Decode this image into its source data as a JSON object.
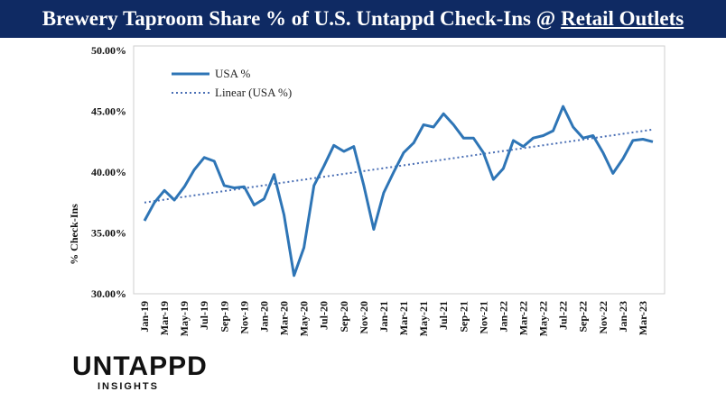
{
  "header": {
    "title_main": "Brewery Taproom Share % of U.S. Untappd Check-Ins @",
    "title_link": "Retail Outlets"
  },
  "logo": {
    "name": "UNTAPPD",
    "tagline": "INSIGHTS"
  },
  "colors": {
    "header_bg": "#0f2a63",
    "series": "#2e75b6",
    "trend": "#4a6fb5",
    "frame": "#cfcfcf"
  },
  "chart_data": {
    "type": "line",
    "title": "Brewery Taproom Share % of U.S. Untappd Check-Ins @ Retail Outlets",
    "ylabel": "% Check-Ins",
    "xlabel": "",
    "ylim": [
      30,
      50
    ],
    "y_ticks": [
      "50.00%",
      "45.00%",
      "40.00%",
      "35.00%",
      "30.00%"
    ],
    "y_tick_values": [
      50,
      45,
      40,
      35,
      30
    ],
    "grid": false,
    "legend_position": "top-left",
    "x": [
      "Jan-19",
      "Feb-19",
      "Mar-19",
      "Apr-19",
      "May-19",
      "Jun-19",
      "Jul-19",
      "Aug-19",
      "Sep-19",
      "Oct-19",
      "Nov-19",
      "Dec-19",
      "Jan-20",
      "Feb-20",
      "Mar-20",
      "Apr-20",
      "May-20",
      "Jun-20",
      "Jul-20",
      "Aug-20",
      "Sep-20",
      "Oct-20",
      "Nov-20",
      "Dec-20",
      "Jan-21",
      "Feb-21",
      "Mar-21",
      "Apr-21",
      "May-21",
      "Jun-21",
      "Jul-21",
      "Aug-21",
      "Sep-21",
      "Oct-21",
      "Nov-21",
      "Dec-21",
      "Jan-22",
      "Feb-22",
      "Mar-22",
      "Apr-22",
      "May-22",
      "Jun-22",
      "Jul-22",
      "Aug-22",
      "Sep-22",
      "Oct-22",
      "Nov-22",
      "Dec-22",
      "Jan-23",
      "Feb-23",
      "Mar-23",
      "Apr-23"
    ],
    "x_tick_labels": [
      "Jan-19",
      "Mar-19",
      "May-19",
      "Jul-19",
      "Sep-19",
      "Nov-19",
      "Jan-20",
      "Mar-20",
      "May-20",
      "Jul-20",
      "Sep-20",
      "Nov-20",
      "Jan-21",
      "Mar-21",
      "May-21",
      "Jul-21",
      "Sep-21",
      "Nov-21",
      "Jan-22",
      "Mar-22",
      "May-22",
      "Jul-22",
      "Sep-22",
      "Nov-22",
      "Jan-23",
      "Mar-23"
    ],
    "series": [
      {
        "name": "USA %",
        "style": "solid",
        "values": [
          36.0,
          37.5,
          38.5,
          37.7,
          38.8,
          40.2,
          41.2,
          40.9,
          38.9,
          38.7,
          38.8,
          37.3,
          37.8,
          39.8,
          36.5,
          31.5,
          33.8,
          38.9,
          40.5,
          42.2,
          41.7,
          42.1,
          38.9,
          35.3,
          38.3,
          40.0,
          41.6,
          42.4,
          43.9,
          43.7,
          44.8,
          43.9,
          42.8,
          42.8,
          41.6,
          39.4,
          40.3,
          42.6,
          42.1,
          42.8,
          43.0,
          43.4,
          45.4,
          43.7,
          42.8,
          43.0,
          41.6,
          39.9,
          41.1,
          42.6,
          42.7,
          42.5
        ]
      },
      {
        "name": "Linear (USA %)",
        "style": "dotted",
        "start": 37.5,
        "end": 43.5
      }
    ]
  }
}
